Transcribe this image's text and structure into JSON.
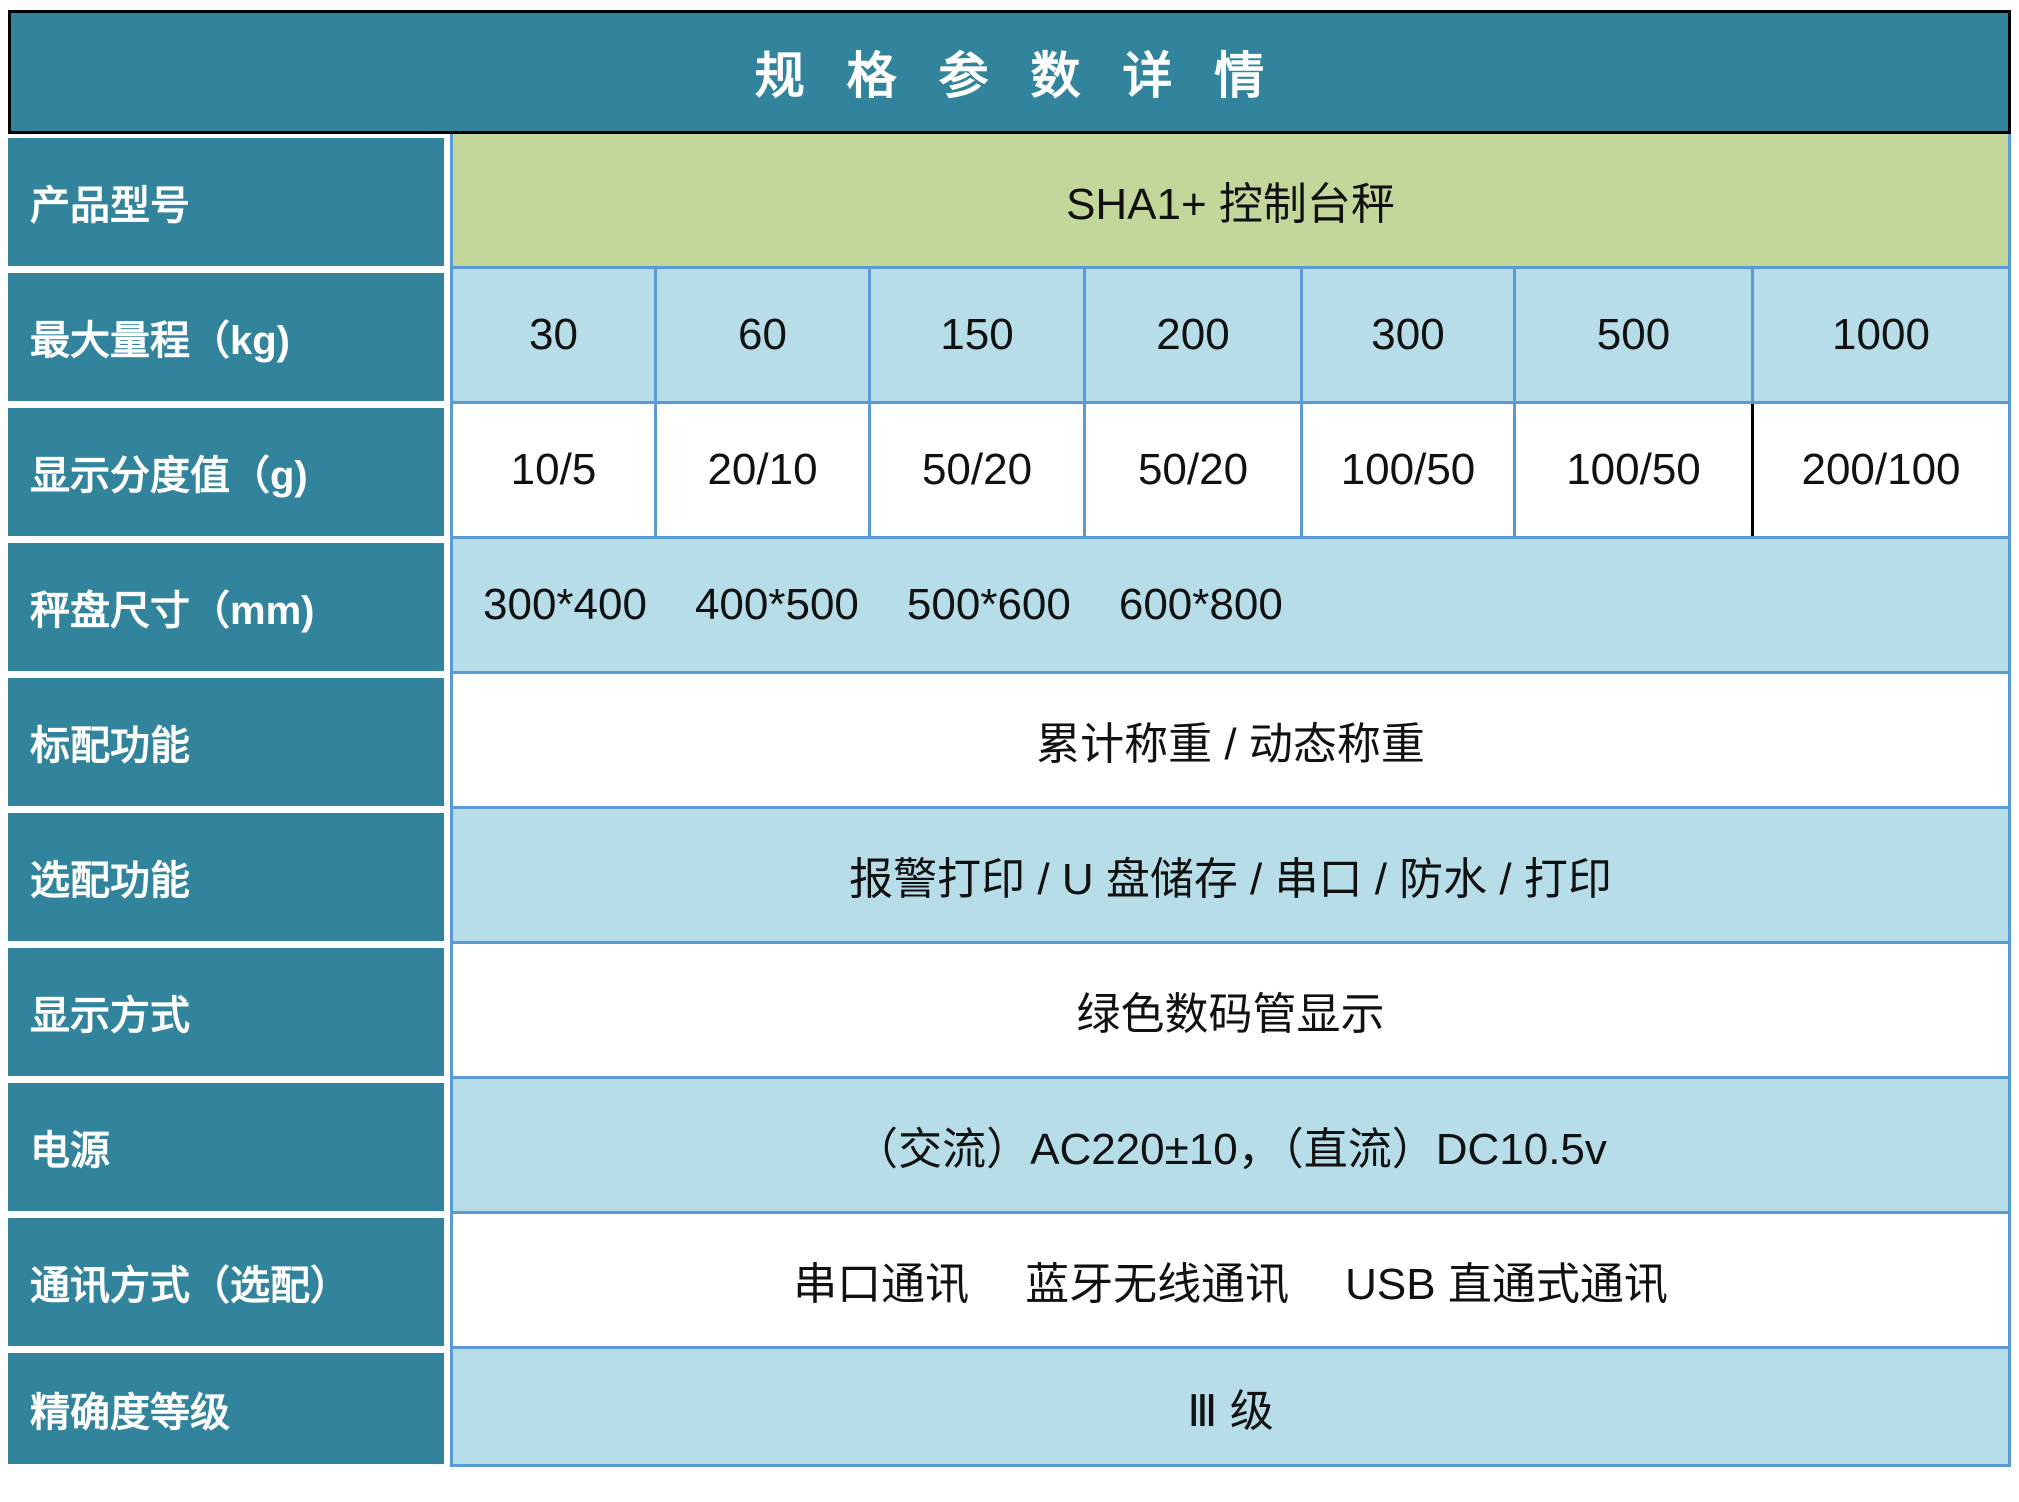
{
  "title": "规 格 参 数 详 情",
  "colors": {
    "header_teal": "#31849B",
    "model_olive": "#C4D79B",
    "cell_light_blue": "#B7DEE8",
    "grid_border_blue": "#5B9BD5",
    "title_border_black": "#000000"
  },
  "rows": {
    "r1": {
      "label": "产品型号",
      "value": "SHA1+ 控制台秤"
    },
    "r2": {
      "label": "最大量程（kg)",
      "values": [
        "30",
        "60",
        "150",
        "200",
        "300",
        "500",
        "1000"
      ]
    },
    "r3": {
      "label": "显示分度值（g)",
      "values": [
        "10/5",
        "20/10",
        "50/20",
        "50/20",
        "100/50",
        "100/50",
        "200/100"
      ]
    },
    "r4": {
      "label": "秤盘尺寸（mm)",
      "values": [
        "300*400",
        "400*500",
        "500*600",
        "600*800"
      ]
    },
    "r5": {
      "label": "标配功能",
      "value": "累计称重 / 动态称重"
    },
    "r6": {
      "label": "选配功能",
      "value": "报警打印 / U 盘储存 / 串口 / 防水 / 打印"
    },
    "r7": {
      "label": "显示方式",
      "value": "绿色数码管显示"
    },
    "r8": {
      "label": "电源",
      "value": "（交流）AC220±10，（直流）DC10.5v"
    },
    "r9": {
      "label": "通讯方式（选配）",
      "values": [
        "串口通讯",
        "蓝牙无线通讯",
        "USB 直通式通讯"
      ]
    },
    "r10": {
      "label": "精确度等级",
      "value": "Ⅲ 级"
    }
  }
}
